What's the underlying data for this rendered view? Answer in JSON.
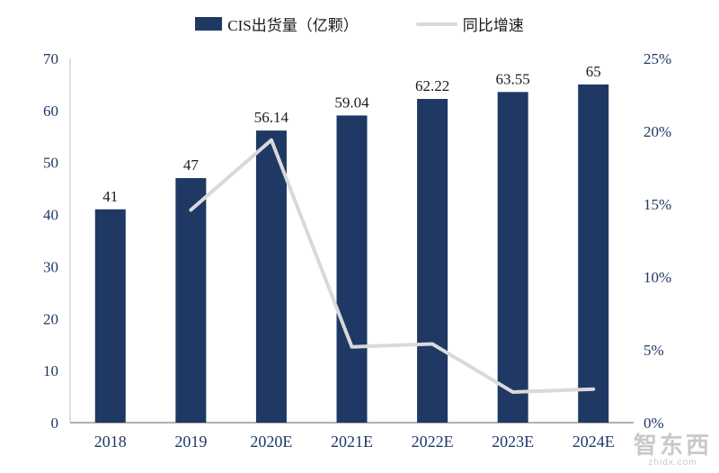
{
  "chart_data": {
    "type": "bar+line",
    "title": "",
    "categories": [
      "2018",
      "2019",
      "2020E",
      "2021E",
      "2022E",
      "2023E",
      "2024E"
    ],
    "series": [
      {
        "name": "CIS出货量（亿颗）",
        "type": "bar",
        "axis": "left",
        "color": "#1F3864",
        "values": [
          41,
          47,
          56.14,
          59.04,
          62.22,
          63.55,
          65
        ],
        "labels": [
          "41",
          "47",
          "56.14",
          "59.04",
          "62.22",
          "63.55",
          "65"
        ]
      },
      {
        "name": "同比增速",
        "type": "line",
        "axis": "right",
        "color": "#D9D9D9",
        "values": [
          null,
          14.6,
          19.4,
          5.2,
          5.4,
          2.1,
          2.3
        ]
      }
    ],
    "left_axis": {
      "min": 0,
      "max": 70,
      "step": 10,
      "ticks": [
        "0",
        "10",
        "20",
        "30",
        "40",
        "50",
        "60",
        "70"
      ]
    },
    "right_axis": {
      "min": 0,
      "max": 25,
      "step": 5,
      "ticks": [
        "0%",
        "5%",
        "10%",
        "15%",
        "20%",
        "25%"
      ]
    },
    "grid": false,
    "legend_position": "top",
    "colors": {
      "bar": "#1F3864",
      "line": "#D9D9D9",
      "axis_text": "#1F3864",
      "data_label_text": "#1a1a1a",
      "bottom_spine": "#808080",
      "left_spine": "#BFBFBF"
    }
  },
  "legend": {
    "bar_label": "CIS出货量（亿颗）",
    "line_label": "同比增速"
  },
  "watermark": {
    "line1": "智东西",
    "line2": "zhidx.com"
  }
}
